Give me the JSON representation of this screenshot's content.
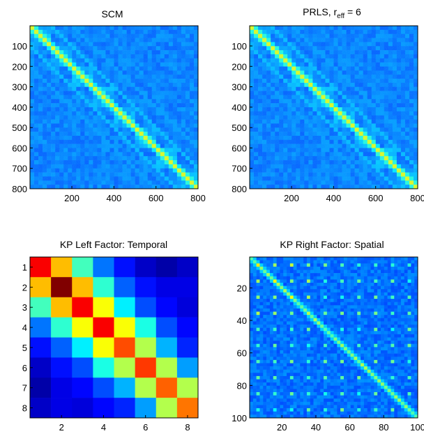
{
  "chart_data": [
    {
      "type": "heatmap",
      "title": "SCM",
      "matrix_size": 800,
      "block_size": 100,
      "pattern": "block-toeplitz covariance with strong main diagonal and off-diagonal bands",
      "xlim": [
        1,
        800
      ],
      "ylim": [
        1,
        800
      ],
      "xticks": [
        200,
        400,
        600,
        800
      ],
      "yticks": [
        100,
        200,
        300,
        400,
        500,
        600,
        700,
        800
      ],
      "colormap": "jet"
    },
    {
      "type": "heatmap",
      "title_main": "PRLS, r",
      "title_sub": "eff",
      "title_tail": " = 6",
      "matrix_size": 800,
      "block_size": 100,
      "pattern": "block-toeplitz covariance with strong main diagonal and off-diagonal bands",
      "xlim": [
        1,
        800
      ],
      "ylim": [
        1,
        800
      ],
      "xticks": [
        200,
        400,
        600,
        800
      ],
      "yticks": [
        100,
        200,
        300,
        400,
        500,
        600,
        700,
        800
      ],
      "colormap": "jet"
    },
    {
      "type": "heatmap",
      "title": "KP Left Factor: Temporal",
      "xticks": [
        2,
        4,
        6,
        8
      ],
      "yticks": [
        1,
        2,
        3,
        4,
        5,
        6,
        7,
        8
      ],
      "xlim": [
        0.5,
        8.5
      ],
      "ylim": [
        0.5,
        8.5
      ],
      "colormap": "jet",
      "clim": [
        0,
        1
      ],
      "values": [
        [
          0.88,
          0.69,
          0.44,
          0.24,
          0.14,
          0.07,
          0.04,
          0.07
        ],
        [
          0.69,
          1.0,
          0.69,
          0.42,
          0.22,
          0.14,
          0.1,
          0.1
        ],
        [
          0.44,
          0.69,
          0.88,
          0.62,
          0.36,
          0.2,
          0.13,
          0.09
        ],
        [
          0.24,
          0.42,
          0.62,
          0.88,
          0.62,
          0.4,
          0.2,
          0.13
        ],
        [
          0.14,
          0.22,
          0.36,
          0.62,
          0.8,
          0.55,
          0.3,
          0.16
        ],
        [
          0.07,
          0.14,
          0.2,
          0.4,
          0.55,
          0.82,
          0.55,
          0.28
        ],
        [
          0.04,
          0.1,
          0.13,
          0.2,
          0.3,
          0.55,
          0.78,
          0.55
        ],
        [
          0.07,
          0.1,
          0.09,
          0.13,
          0.16,
          0.28,
          0.55,
          0.76
        ]
      ]
    },
    {
      "type": "heatmap",
      "title": "KP Right Factor: Spatial",
      "matrix_size": 100,
      "xlim": [
        1,
        100
      ],
      "ylim": [
        1,
        100
      ],
      "xticks": [
        20,
        40,
        60,
        80,
        100
      ],
      "yticks": [
        20,
        40,
        60,
        80,
        100
      ],
      "pattern": "grid of bright spots every ~10 indices with stronger main diagonal",
      "colormap": "jet"
    }
  ]
}
